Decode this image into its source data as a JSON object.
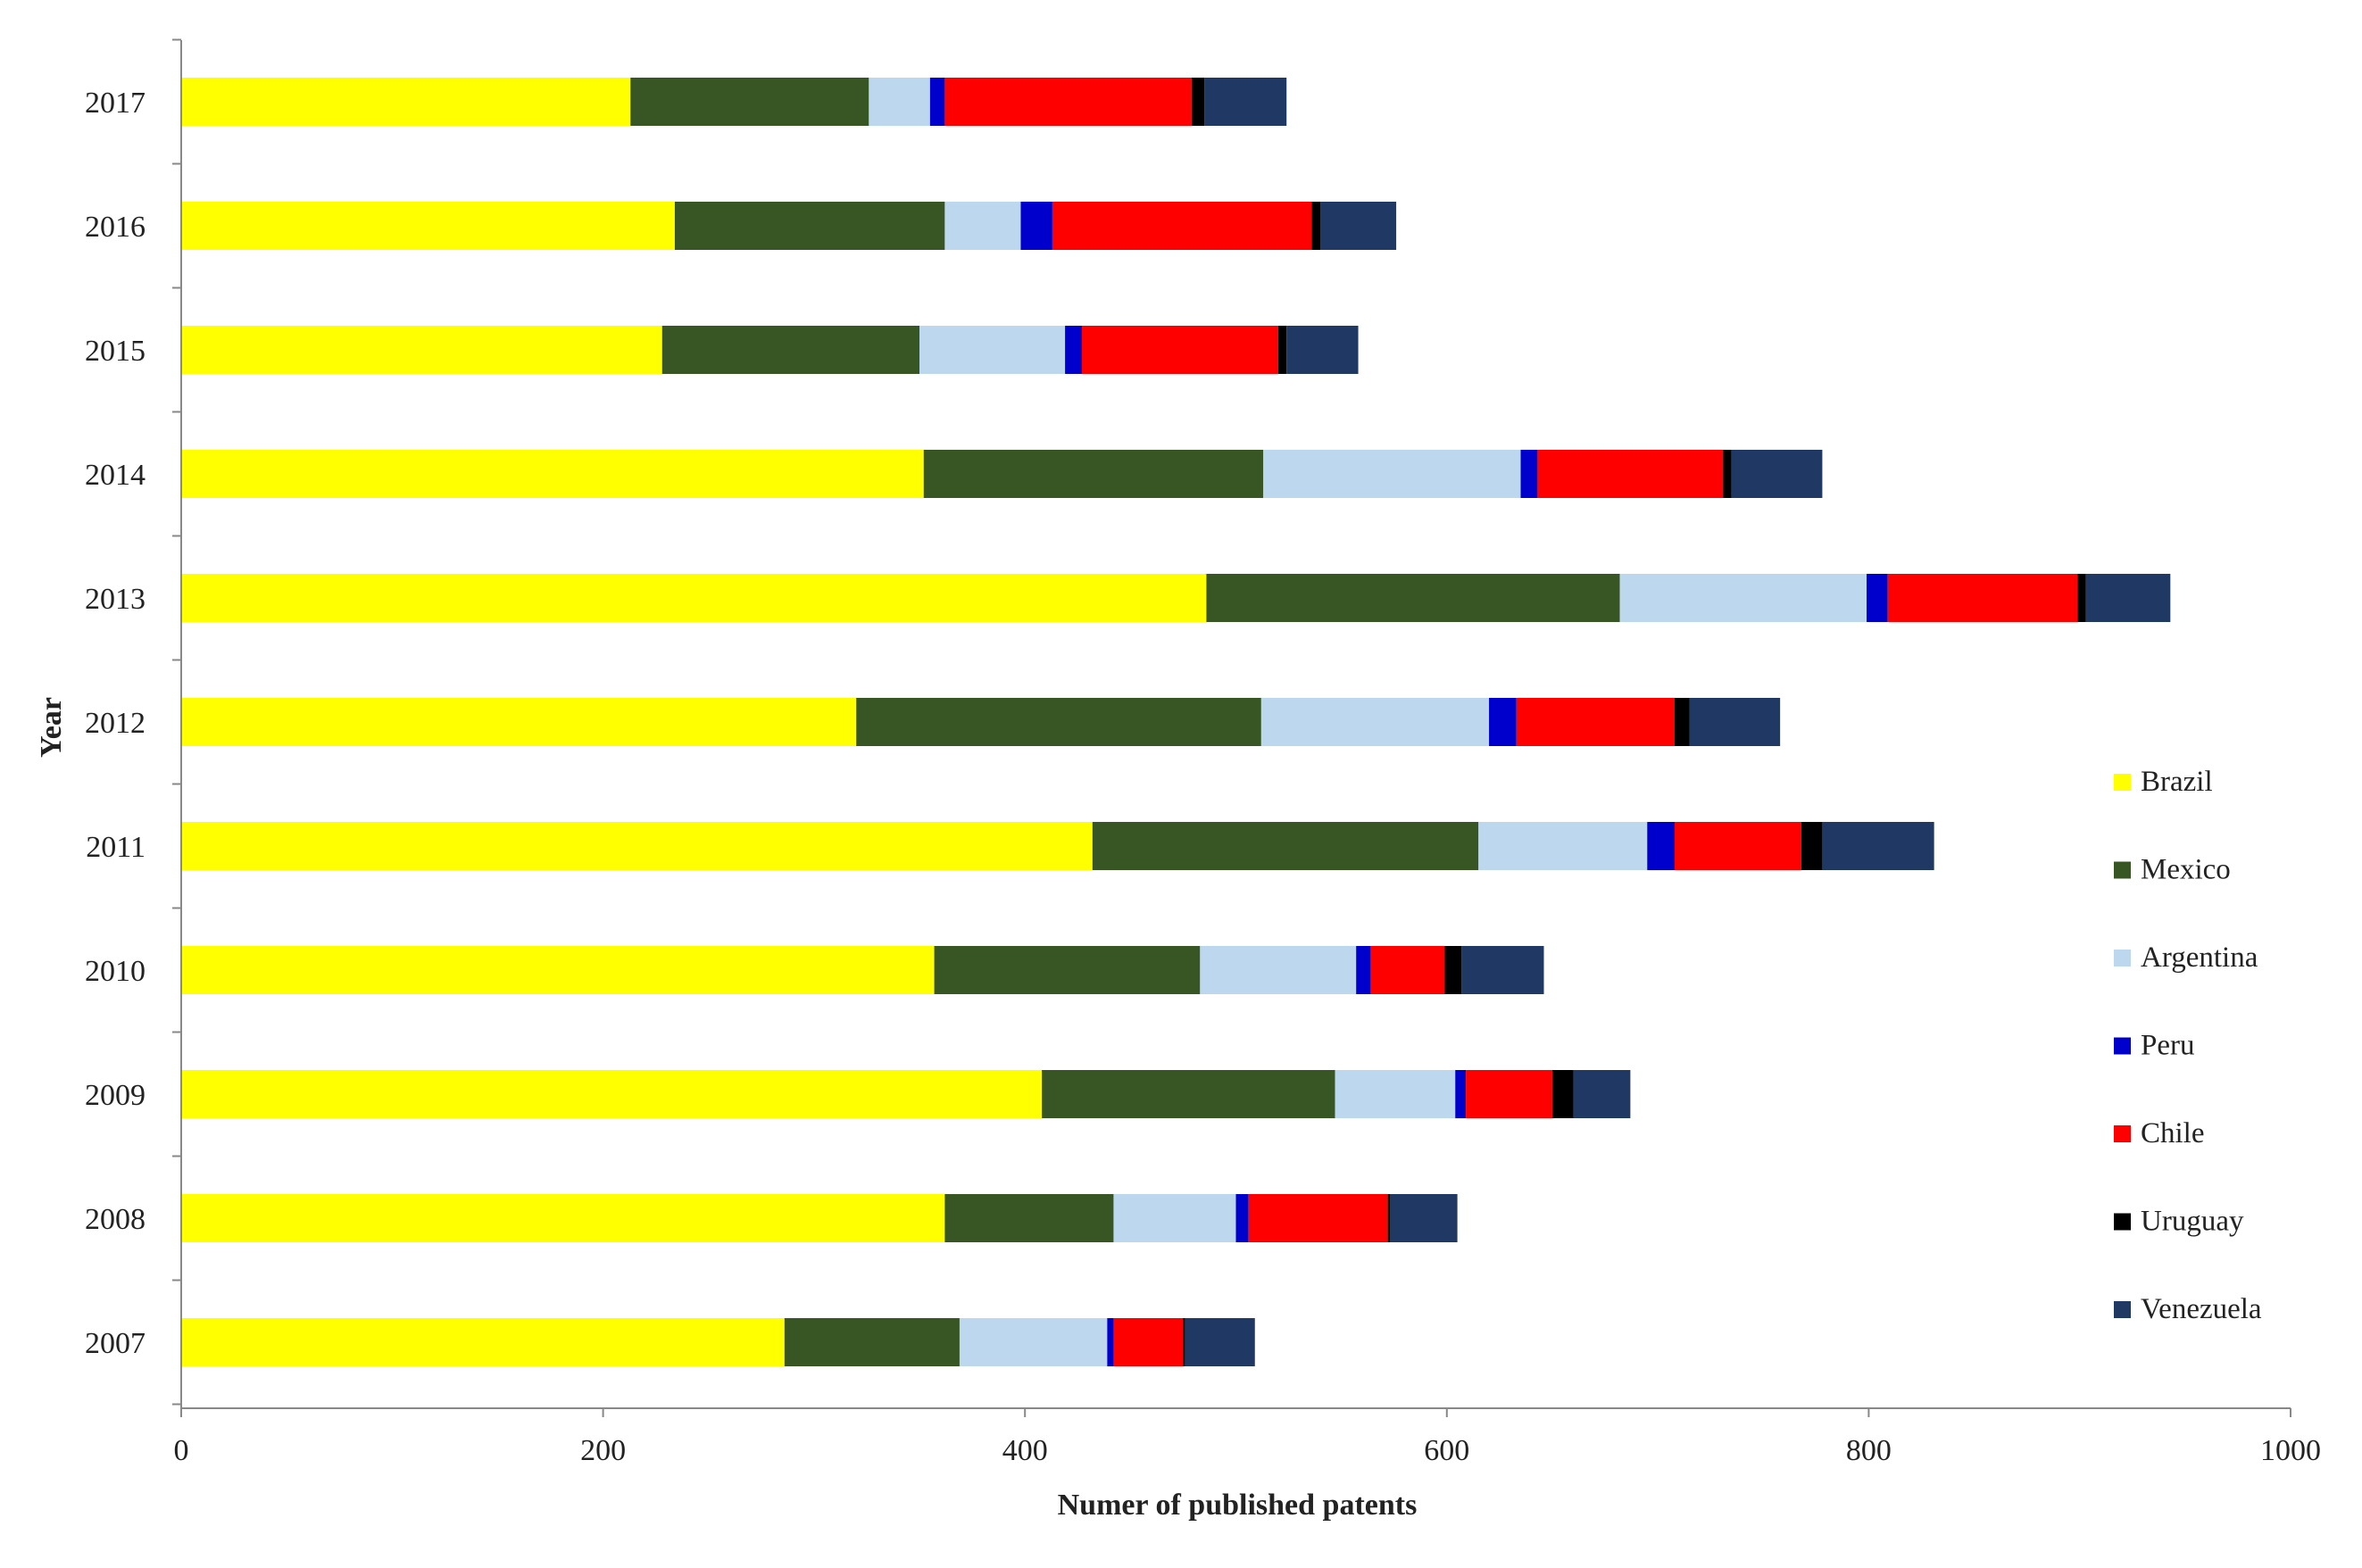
{
  "chart_data": {
    "type": "bar",
    "orientation": "horizontal",
    "stacked": true,
    "title": "",
    "xlabel": "Numer of published patents",
    "ylabel": "Year",
    "xlim": [
      0,
      1000
    ],
    "xticks": [
      "0",
      "200",
      "400",
      "600",
      "800",
      "1000"
    ],
    "categories": [
      "2017",
      "2016",
      "2015",
      "2014",
      "2013",
      "2012",
      "2011",
      "2010",
      "2009",
      "2008",
      "2007"
    ],
    "series": [
      {
        "name": "Brazil",
        "color": "#ffff00",
        "values": [
          213,
          234,
          228,
          352,
          486,
          320,
          432,
          357,
          408,
          362,
          286
        ]
      },
      {
        "name": "Mexico",
        "color": "#375623",
        "values": [
          113,
          128,
          122,
          161,
          196,
          192,
          183,
          126,
          139,
          80,
          83
        ]
      },
      {
        "name": "Argentina",
        "color": "#bdd7ee",
        "values": [
          29,
          36,
          69,
          122,
          117,
          108,
          80,
          74,
          57,
          58,
          70
        ]
      },
      {
        "name": "Peru",
        "color": "#0000cc",
        "values": [
          7,
          15,
          8,
          8,
          10,
          13,
          13,
          7,
          5,
          6,
          3
        ]
      },
      {
        "name": "Chile",
        "color": "#ff0000",
        "values": [
          117,
          123,
          93,
          88,
          90,
          75,
          60,
          35,
          41,
          66,
          33
        ]
      },
      {
        "name": "Uruguay",
        "color": "#000000",
        "values": [
          6,
          4,
          4,
          4,
          4,
          7,
          10,
          8,
          10,
          1,
          1
        ]
      },
      {
        "name": "Venezuela",
        "color": "#1f3864",
        "values": [
          39,
          36,
          34,
          43,
          40,
          43,
          53,
          39,
          27,
          32,
          33
        ]
      }
    ],
    "legend_position": "right"
  }
}
